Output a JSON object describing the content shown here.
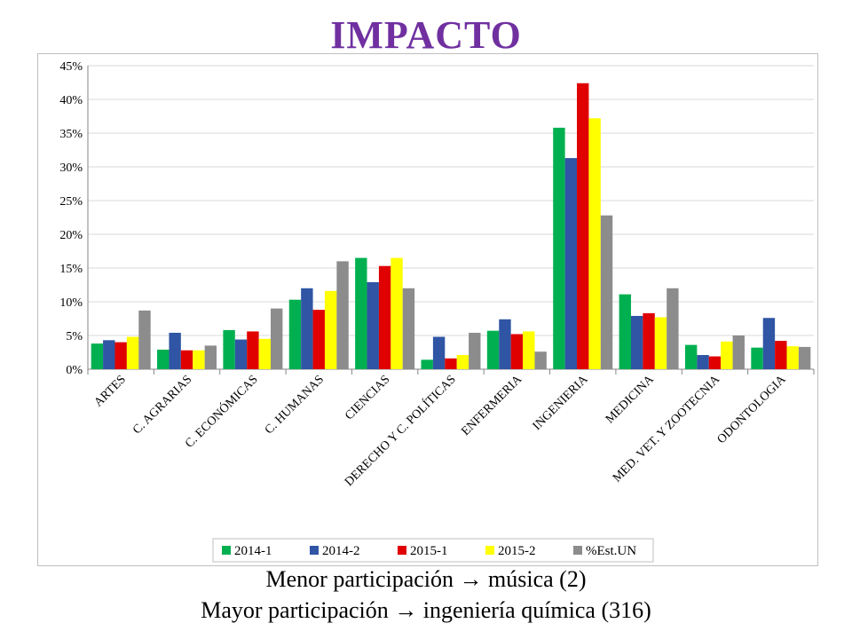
{
  "slide": {
    "title": "IMPACTO",
    "caption_line1": "Menor participación → música (2)",
    "caption_line2": "Mayor participación → ingeniería química (316)"
  },
  "chart_data": {
    "type": "bar",
    "categories": [
      "ARTES",
      "C. AGRARIAS",
      "C. ECONÓMICAS",
      "C. HUMANAS",
      "CIENCIAS",
      "DERECHO Y C. POLÍTICAS",
      "ENFERMERIA",
      "INGENIERIA",
      "MEDICINA",
      "MED. VET. Y ZOOTECNIA",
      "ODONTOLOGIA"
    ],
    "series": [
      {
        "name": "2014-1",
        "color": "#00b050",
        "values": [
          3.8,
          2.9,
          5.8,
          10.3,
          16.5,
          1.4,
          5.7,
          35.8,
          11.1,
          3.6,
          3.2
        ]
      },
      {
        "name": "2014-2",
        "color": "#2f55a4",
        "values": [
          4.3,
          5.4,
          4.4,
          12.0,
          12.9,
          4.8,
          7.4,
          31.3,
          7.9,
          2.1,
          7.6
        ]
      },
      {
        "name": "2015-1",
        "color": "#e00000",
        "values": [
          4.0,
          2.8,
          5.6,
          8.8,
          15.3,
          1.6,
          5.2,
          42.4,
          8.3,
          1.9,
          4.2
        ]
      },
      {
        "name": "2015-2",
        "color": "#ffff00",
        "values": [
          4.8,
          2.8,
          4.5,
          11.6,
          16.5,
          2.1,
          5.6,
          37.2,
          7.7,
          4.1,
          3.4
        ]
      },
      {
        "name": "%Est.UN",
        "color": "#8c8c8c",
        "values": [
          8.7,
          3.5,
          9.0,
          16.0,
          12.0,
          5.4,
          2.6,
          22.8,
          12.0,
          5.0,
          3.3
        ]
      }
    ],
    "y_ticks": [
      "0%",
      "5%",
      "10%",
      "15%",
      "20%",
      "25%",
      "30%",
      "35%",
      "40%",
      "45%"
    ],
    "ylim": [
      0,
      45
    ],
    "grid": true,
    "legend_position": "bottom"
  }
}
